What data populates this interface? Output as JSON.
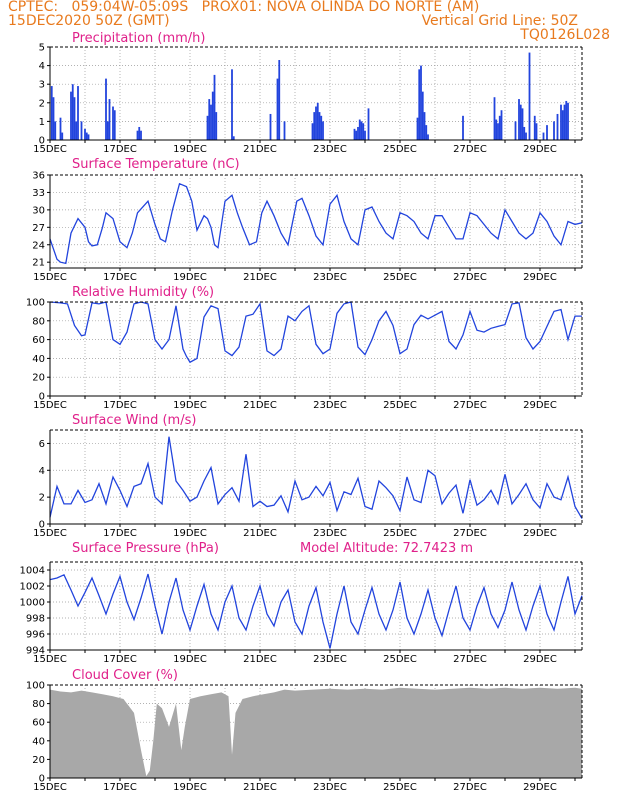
{
  "header": {
    "line1": "CPTEC:   059:04W-05:09S   PROX01: NOVA OLINDA DO NORTE (AM)",
    "line2_left": "15DEC2020 50Z (GMT)",
    "line2_right": "Vertical Grid Line: 50Z",
    "line3_right": "TQ0126L028"
  },
  "colors": {
    "series": "#2244dd",
    "title": "#e0208a",
    "header": "#e87a1e",
    "cloud": "#a8a8a8"
  },
  "x_ticks": [
    "15DEC",
    "17DEC",
    "19DEC",
    "21DEC",
    "23DEC",
    "25DEC",
    "27DEC",
    "29DEC"
  ],
  "chart_data": [
    {
      "type": "bar",
      "title": "Precipitation (mm/h)",
      "ylim": [
        0,
        5
      ],
      "yticks": [
        0,
        1,
        2,
        3,
        4,
        5
      ],
      "x_range_days": [
        0,
        15.2
      ],
      "x": [
        0.05,
        0.1,
        0.15,
        0.3,
        0.35,
        0.6,
        0.65,
        0.7,
        0.75,
        0.8,
        0.9,
        1.0,
        1.05,
        1.1,
        1.6,
        1.65,
        1.7,
        1.8,
        1.85,
        2.5,
        2.55,
        2.6,
        4.5,
        4.55,
        4.6,
        4.65,
        4.7,
        4.75,
        5.2,
        5.25,
        6.3,
        6.5,
        6.55,
        6.7,
        7.5,
        7.55,
        7.6,
        7.65,
        7.7,
        7.75,
        7.8,
        8.7,
        8.75,
        8.8,
        8.85,
        8.9,
        8.95,
        9.0,
        9.1,
        10.5,
        10.55,
        10.6,
        10.65,
        10.7,
        10.75,
        10.8,
        11.8,
        12.7,
        12.75,
        12.8,
        12.85,
        12.9,
        13.3,
        13.4,
        13.45,
        13.5,
        13.55,
        13.6,
        13.7,
        13.85,
        13.9,
        14.1,
        14.2,
        14.4,
        14.5,
        14.6,
        14.65,
        14.7,
        14.75,
        14.8
      ],
      "values": [
        2.9,
        2.3,
        1.0,
        1.2,
        0.4,
        2.6,
        3.0,
        2.3,
        1.0,
        2.9,
        1.0,
        0.6,
        0.4,
        0.3,
        3.3,
        1.0,
        2.2,
        1.8,
        1.6,
        0.5,
        0.7,
        0.5,
        1.3,
        2.2,
        1.9,
        2.6,
        3.5,
        1.5,
        3.8,
        0.2,
        1.4,
        3.3,
        4.3,
        1.0,
        0.9,
        1.5,
        1.8,
        2.0,
        1.5,
        1.3,
        1.0,
        0.6,
        0.5,
        0.7,
        1.1,
        1.0,
        0.9,
        0.5,
        1.7,
        1.2,
        3.8,
        4.0,
        2.6,
        1.5,
        0.8,
        0.3,
        1.3,
        2.3,
        1.1,
        0.9,
        1.3,
        1.6,
        1.0,
        2.2,
        1.9,
        1.7,
        0.7,
        0.4,
        4.7,
        1.3,
        0.9,
        0.4,
        0.8,
        1.0,
        1.4,
        1.9,
        1.6,
        1.9,
        2.1,
        2.0
      ]
    },
    {
      "type": "line",
      "title": "Surface Temperature (nC)",
      "ylim": [
        20,
        36
      ],
      "yticks": [
        21,
        24,
        27,
        30,
        33,
        36
      ],
      "x": [
        0,
        0.2,
        0.3,
        0.45,
        0.6,
        0.8,
        1.0,
        1.1,
        1.2,
        1.35,
        1.5,
        1.6,
        1.8,
        2.0,
        2.2,
        2.35,
        2.5,
        2.8,
        3.0,
        3.15,
        3.3,
        3.5,
        3.7,
        3.9,
        4.05,
        4.2,
        4.4,
        4.5,
        4.6,
        4.7,
        4.8,
        5.0,
        5.2,
        5.35,
        5.5,
        5.7,
        5.9,
        6.05,
        6.2,
        6.4,
        6.6,
        6.8,
        7.05,
        7.2,
        7.4,
        7.6,
        7.8,
        8.0,
        8.2,
        8.4,
        8.6,
        8.8,
        9.0,
        9.2,
        9.4,
        9.6,
        9.8,
        10.0,
        10.2,
        10.4,
        10.6,
        10.8,
        11.0,
        11.2,
        11.4,
        11.6,
        11.8,
        12.0,
        12.2,
        12.4,
        12.6,
        12.8,
        13.0,
        13.2,
        13.4,
        13.6,
        13.8,
        14.0,
        14.2,
        14.4,
        14.6,
        14.8,
        15.0,
        15.2
      ],
      "values": [
        25,
        21.5,
        21,
        20.8,
        26,
        28.5,
        27,
        24.5,
        23.8,
        24,
        27,
        29.5,
        28.5,
        24.5,
        23.5,
        26,
        29.5,
        31.5,
        27.5,
        25,
        24.5,
        30,
        34.5,
        34,
        31.5,
        26.5,
        29,
        28.5,
        27,
        24,
        23.5,
        31.5,
        32.5,
        29.5,
        27,
        24,
        24.5,
        29.5,
        31.5,
        29,
        26,
        24,
        31.5,
        32,
        29,
        25.5,
        24,
        31,
        32.5,
        28,
        25,
        24,
        30,
        30.5,
        28,
        26,
        25,
        29.5,
        29,
        28,
        26,
        25,
        29,
        29,
        27,
        25,
        25,
        29.5,
        29,
        27.5,
        26,
        25,
        30,
        28,
        26,
        25,
        26,
        29.5,
        28,
        25.5,
        24,
        28,
        27.5,
        27.8
      ]
    },
    {
      "type": "line",
      "title": "Relative Humidity (%)",
      "ylim": [
        0,
        100
      ],
      "yticks": [
        0,
        20,
        40,
        60,
        80,
        100
      ],
      "x": [
        0,
        0.3,
        0.5,
        0.7,
        0.9,
        1.0,
        1.2,
        1.4,
        1.6,
        1.8,
        2.0,
        2.2,
        2.4,
        2.6,
        2.8,
        3.0,
        3.2,
        3.4,
        3.6,
        3.8,
        3.9,
        4.0,
        4.2,
        4.4,
        4.6,
        4.8,
        5.0,
        5.2,
        5.4,
        5.6,
        5.8,
        6.0,
        6.2,
        6.4,
        6.6,
        6.8,
        7.0,
        7.2,
        7.4,
        7.6,
        7.8,
        8.0,
        8.2,
        8.4,
        8.6,
        8.8,
        9.0,
        9.2,
        9.4,
        9.6,
        9.8,
        10.0,
        10.2,
        10.4,
        10.6,
        10.8,
        11.0,
        11.2,
        11.4,
        11.6,
        11.8,
        12.0,
        12.2,
        12.4,
        12.6,
        12.8,
        13.0,
        13.2,
        13.4,
        13.6,
        13.8,
        14.0,
        14.2,
        14.4,
        14.6,
        14.8,
        15.0,
        15.2
      ],
      "values": [
        100,
        99,
        98,
        75,
        64,
        65,
        99,
        98,
        100,
        60,
        55,
        68,
        98,
        100,
        98,
        60,
        50,
        60,
        96,
        50,
        42,
        36,
        40,
        84,
        96,
        93,
        48,
        43,
        52,
        85,
        87,
        98,
        48,
        43,
        50,
        85,
        80,
        90,
        96,
        55,
        45,
        50,
        88,
        98,
        100,
        52,
        44,
        60,
        80,
        90,
        75,
        45,
        50,
        76,
        86,
        82,
        86,
        90,
        58,
        50,
        65,
        90,
        70,
        68,
        72,
        74,
        76,
        98,
        99,
        62,
        50,
        58,
        74,
        90,
        92,
        60,
        85,
        85
      ]
    },
    {
      "type": "line",
      "title": "Surface Wind (m/s)",
      "ylim": [
        0,
        7
      ],
      "yticks": [
        0,
        2,
        4,
        6
      ],
      "x": [
        0,
        0.2,
        0.4,
        0.6,
        0.8,
        1.0,
        1.2,
        1.4,
        1.6,
        1.8,
        2.0,
        2.2,
        2.4,
        2.6,
        2.8,
        3.0,
        3.2,
        3.4,
        3.6,
        3.8,
        4.0,
        4.2,
        4.4,
        4.6,
        4.8,
        5.0,
        5.2,
        5.4,
        5.6,
        5.8,
        6.0,
        6.2,
        6.4,
        6.6,
        6.8,
        7.0,
        7.2,
        7.4,
        7.6,
        7.8,
        8.0,
        8.2,
        8.4,
        8.6,
        8.8,
        9.0,
        9.2,
        9.4,
        9.6,
        9.8,
        10.0,
        10.2,
        10.4,
        10.6,
        10.8,
        11.0,
        11.2,
        11.4,
        11.6,
        11.8,
        12.0,
        12.2,
        12.4,
        12.6,
        12.8,
        13.0,
        13.2,
        13.4,
        13.6,
        13.8,
        14.0,
        14.2,
        14.4,
        14.6,
        14.8,
        15.0,
        15.2
      ],
      "values": [
        0.5,
        2.8,
        1.5,
        1.5,
        2.5,
        1.6,
        1.8,
        3.0,
        1.5,
        3.5,
        2.5,
        1.3,
        2.8,
        3.0,
        4.5,
        2.0,
        1.5,
        6.5,
        3.2,
        2.5,
        1.7,
        2.0,
        3.2,
        4.2,
        1.5,
        2.2,
        2.7,
        1.7,
        5.2,
        1.3,
        1.7,
        1.3,
        1.4,
        2.1,
        0.9,
        3.2,
        1.8,
        2.0,
        2.8,
        2.1,
        3.1,
        1.0,
        2.4,
        2.2,
        3.4,
        1.3,
        1.1,
        3.2,
        2.7,
        2.1,
        1.0,
        3.5,
        1.8,
        1.6,
        4.0,
        3.6,
        1.5,
        2.3,
        2.9,
        0.8,
        3.3,
        1.4,
        1.8,
        2.5,
        1.5,
        3.7,
        1.5,
        2.2,
        3.0,
        1.8,
        1.2,
        3.0,
        2.0,
        1.8,
        3.5,
        1.3,
        0.4
      ]
    },
    {
      "type": "line",
      "title": "Surface Pressure (hPa)",
      "annotation": "Model Altitude: 72.7423 m",
      "ylim": [
        994,
        1005
      ],
      "yticks": [
        994,
        996,
        998,
        1000,
        1002,
        1004
      ],
      "x": [
        0,
        0.2,
        0.4,
        0.6,
        0.8,
        1.0,
        1.2,
        1.4,
        1.6,
        1.8,
        2.0,
        2.2,
        2.4,
        2.6,
        2.8,
        3.0,
        3.2,
        3.4,
        3.6,
        3.8,
        4.0,
        4.2,
        4.4,
        4.6,
        4.8,
        5.0,
        5.2,
        5.4,
        5.6,
        5.8,
        6.0,
        6.2,
        6.4,
        6.6,
        6.8,
        7.0,
        7.2,
        7.4,
        7.6,
        7.8,
        8.0,
        8.2,
        8.4,
        8.6,
        8.8,
        9.0,
        9.2,
        9.4,
        9.6,
        9.8,
        10.0,
        10.2,
        10.4,
        10.6,
        10.8,
        11.0,
        11.2,
        11.4,
        11.6,
        11.8,
        12.0,
        12.2,
        12.4,
        12.6,
        12.8,
        13.0,
        13.2,
        13.4,
        13.6,
        13.8,
        14.0,
        14.2,
        14.4,
        14.6,
        14.8,
        15.0,
        15.2
      ],
      "values": [
        1002.8,
        1003.0,
        1003.4,
        1001.5,
        999.5,
        1001.2,
        1003.0,
        1000.8,
        998.5,
        1001.0,
        1003.2,
        1000.0,
        997.8,
        1000.5,
        1003.5,
        999.5,
        996.0,
        1000.0,
        1003.0,
        999.0,
        996.5,
        999.5,
        1002.2,
        998.5,
        996.5,
        1000.0,
        1002.0,
        998.0,
        996.5,
        999.5,
        1002.0,
        998.5,
        997.0,
        1000.0,
        1001.5,
        997.5,
        996.0,
        999.5,
        1001.8,
        997.5,
        994.2,
        998.5,
        1002.0,
        997.5,
        996.0,
        999.0,
        1001.8,
        998.5,
        996.5,
        999.0,
        1002.5,
        998.0,
        996.0,
        998.5,
        1001.5,
        998.0,
        995.8,
        999.0,
        1002.0,
        998.0,
        996.5,
        999.5,
        1001.8,
        998.5,
        996.8,
        999.0,
        1002.5,
        999.0,
        996.5,
        999.5,
        1002.0,
        998.5,
        996.5,
        1000.0,
        1003.2,
        998.5,
        1000.8
      ]
    },
    {
      "type": "area",
      "title": "Cloud Cover (%)",
      "ylim": [
        0,
        100
      ],
      "yticks": [
        0,
        20,
        40,
        60,
        80,
        100
      ],
      "x": [
        0,
        0.3,
        0.6,
        0.9,
        1.2,
        1.5,
        1.8,
        2.1,
        2.4,
        2.6,
        2.75,
        2.85,
        2.95,
        3.05,
        3.2,
        3.4,
        3.6,
        3.75,
        3.85,
        4.0,
        4.3,
        4.6,
        4.9,
        5.1,
        5.2,
        5.3,
        5.5,
        5.8,
        6.1,
        6.4,
        6.7,
        7.0,
        7.5,
        8.0,
        8.5,
        9.0,
        9.5,
        10.0,
        10.5,
        11.0,
        11.5,
        12.0,
        12.5,
        13.0,
        13.5,
        14.0,
        14.5,
        15.0,
        15.2
      ],
      "values": [
        95,
        93,
        92,
        94,
        92,
        90,
        88,
        85,
        70,
        30,
        2,
        8,
        40,
        80,
        75,
        55,
        80,
        30,
        55,
        85,
        88,
        90,
        92,
        88,
        25,
        70,
        85,
        88,
        90,
        92,
        95,
        94,
        95,
        96,
        95,
        96,
        95,
        97,
        96,
        95,
        96,
        97,
        96,
        97,
        96,
        97,
        96,
        97,
        96
      ]
    }
  ]
}
